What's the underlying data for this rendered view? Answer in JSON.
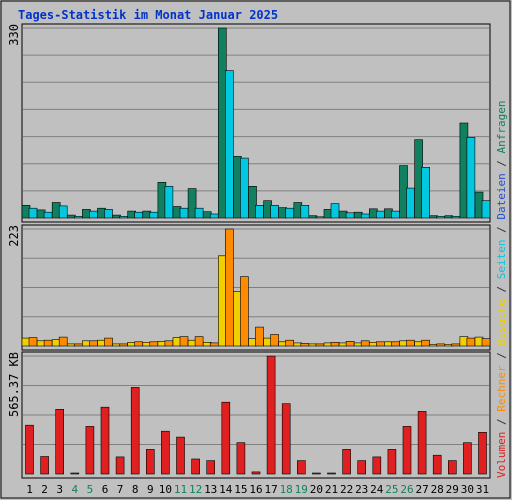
{
  "title": "Tages-Statistik im Monat Januar 2025",
  "panels": {
    "top": {
      "max_label": "330"
    },
    "middle": {
      "max_label": "223"
    },
    "bottom": {
      "max_label": "565.37 KB"
    }
  },
  "right_legend": [
    {
      "text": "Volumen",
      "color": "#e02020"
    },
    {
      "text": " / ",
      "color": "#333333"
    },
    {
      "text": "Rechner",
      "color": "#ff8c00"
    },
    {
      "text": " / ",
      "color": "#333333"
    },
    {
      "text": "Besuche",
      "color": "#f0d000"
    },
    {
      "text": " / ",
      "color": "#333333"
    },
    {
      "text": "Seiten",
      "color": "#00c8e0"
    },
    {
      "text": " / ",
      "color": "#333333"
    },
    {
      "text": "Dateien",
      "color": "#2050d0"
    },
    {
      "text": " / ",
      "color": "#333333"
    },
    {
      "text": "Anfragen",
      "color": "#108060"
    }
  ],
  "chart_data": {
    "type": "bar",
    "title": "Tages-Statistik im Monat Januar 2025",
    "categories": [
      "1",
      "2",
      "3",
      "4",
      "5",
      "6",
      "7",
      "8",
      "9",
      "10",
      "11",
      "12",
      "13",
      "14",
      "15",
      "16",
      "17",
      "18",
      "19",
      "20",
      "21",
      "22",
      "23",
      "24",
      "25",
      "26",
      "27",
      "28",
      "29",
      "30",
      "31"
    ],
    "weekend_days": [
      "4",
      "5",
      "11",
      "12",
      "18",
      "19",
      "25",
      "26"
    ],
    "colors": {
      "anfragen": "#108060",
      "dateien": "#2050d0",
      "seiten": "#00c8e0",
      "besuche": "#f0d000",
      "rechner": "#ff8c00",
      "volumen": "#e02020",
      "weekend_label": "#108060",
      "weekday_label": "#000000"
    },
    "panels": [
      {
        "ylim": [
          0,
          330
        ],
        "series": [
          {
            "name": "Anfragen",
            "values": [
              22,
              14,
              27,
              5,
              15,
              17,
              5,
              12,
              12,
              62,
              20,
              51,
              11,
              330,
              107,
              55,
              30,
              18,
              27,
              4,
              15,
              12,
              10,
              16,
              16,
              91,
              136,
              4,
              4,
              165,
              45
            ]
          },
          {
            "name": "Seiten",
            "values": [
              17,
              10,
              21,
              3,
              12,
              15,
              3,
              10,
              10,
              55,
              17,
              17,
              7,
              256,
              104,
              22,
              22,
              17,
              22,
              2,
              25,
              9,
              7,
              12,
              12,
              52,
              88,
              3,
              3,
              140,
              30
            ]
          }
        ]
      },
      {
        "ylim": [
          0,
          223
        ],
        "series": [
          {
            "name": "Besuche",
            "values": [
              15,
              10,
              12,
              4,
              10,
              11,
              4,
              7,
              7,
              9,
              16,
              11,
              7,
              172,
              104,
              14,
              15,
              8,
              6,
              4,
              6,
              6,
              6,
              7,
              8,
              10,
              8,
              3,
              3,
              18,
              17
            ]
          },
          {
            "name": "Rechner",
            "values": [
              16,
              11,
              17,
              4,
              10,
              15,
              4,
              8,
              8,
              10,
              18,
              18,
              6,
              223,
              132,
              36,
              22,
              11,
              5,
              4,
              7,
              9,
              10,
              8,
              8,
              11,
              11,
              4,
              4,
              15,
              14
            ]
          }
        ]
      },
      {
        "ylim": [
          0,
          565.37
        ],
        "series": [
          {
            "name": "Volumen",
            "values": [
              234,
              84,
              310,
              5,
              228,
              320,
              82,
              415,
              118,
              205,
              177,
              72,
              64,
              344,
              150,
              10,
              565,
              337,
              64,
              5,
              5,
              118,
              64,
              82,
              118,
              228,
              300,
              90,
              64,
              150,
              200
            ]
          }
        ]
      }
    ]
  }
}
